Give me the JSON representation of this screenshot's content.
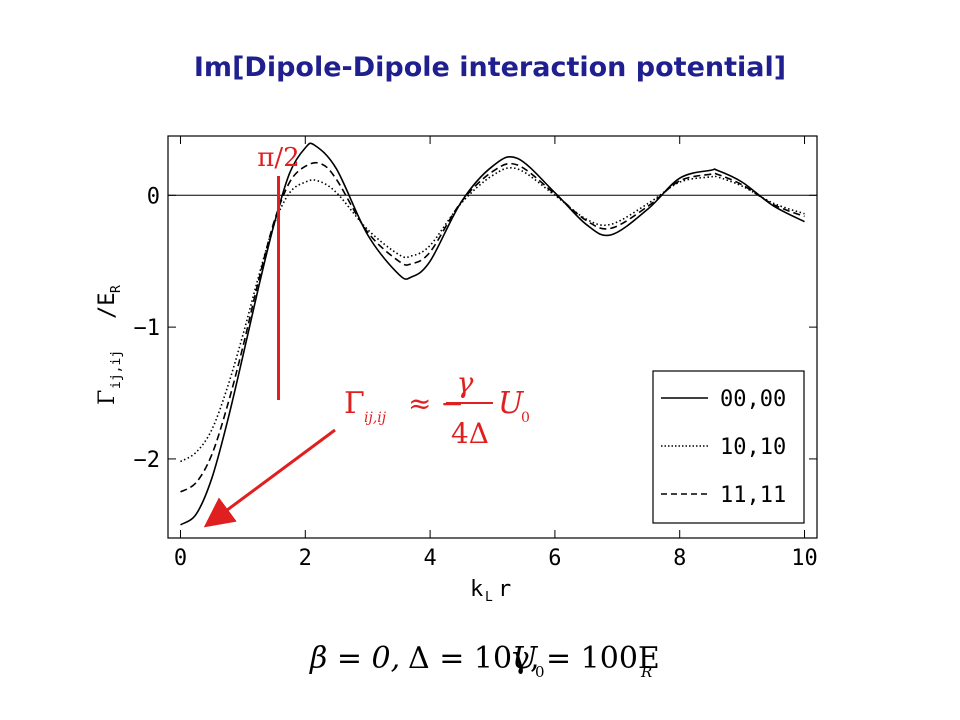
{
  "title": "Im[Dipole-Dipole interaction potential]",
  "colors": {
    "title": "#1f1f8f",
    "annotation": "#e02020",
    "curve": "#000000"
  },
  "formula_box": {
    "lhs": "Γ",
    "lhs_sub": "ij,ij",
    "approx": "≈ −",
    "numerator": "γ",
    "denominator": "4Δ",
    "factor": "U",
    "factor_sub": "0"
  },
  "parameters": {
    "beta": "β = 0,",
    "delta": "Δ = 10γ,",
    "u0": "U",
    "u0_sub": "0",
    "u0_rhs": "= 100E",
    "u0_rhs_sub": "R"
  },
  "chart_data": {
    "type": "line",
    "title": "Im[Dipole-Dipole interaction potential]",
    "xlabel": "k",
    "xlabel_sub": "L",
    "xlabel_tail": "r",
    "ylabel": "Γ",
    "ylabel_sub": "ij,ij",
    "ylabel_tail": "/E",
    "ylabel_tail_sub": "R",
    "xlim": [
      -0.2,
      10.2
    ],
    "ylim": [
      -2.6,
      0.45
    ],
    "x_ticks": [
      0,
      2,
      4,
      6,
      8,
      10
    ],
    "x_tick_labels": [
      "0",
      "2",
      "4",
      "6",
      "8",
      "10"
    ],
    "y_ticks": [
      0,
      -1,
      -2
    ],
    "y_tick_labels": [
      "0",
      "−1",
      "−2"
    ],
    "grid": false,
    "zero_line": true,
    "legend_position": "bottom-right",
    "annotation_pi2": {
      "label": "π/2",
      "x": 1.5708
    },
    "series": [
      {
        "name": "00,00",
        "style": "solid",
        "x": [
          0,
          0.25,
          0.5,
          0.75,
          1.0,
          1.25,
          1.5,
          1.75,
          2.0,
          2.15,
          2.5,
          3.0,
          3.5,
          3.7,
          4.0,
          4.5,
          5.0,
          5.4,
          6.0,
          6.5,
          6.9,
          7.5,
          8.0,
          8.5,
          8.6,
          9.0,
          9.5,
          10.0
        ],
        "y": [
          -2.5,
          -2.42,
          -2.15,
          -1.72,
          -1.22,
          -0.7,
          -0.22,
          0.17,
          0.36,
          0.38,
          0.2,
          -0.3,
          -0.6,
          -0.62,
          -0.5,
          -0.05,
          0.22,
          0.28,
          0.02,
          -0.22,
          -0.3,
          -0.1,
          0.13,
          0.19,
          0.19,
          0.1,
          -0.08,
          -0.2
        ]
      },
      {
        "name": "10,10",
        "style": "dotted",
        "x": [
          0,
          0.25,
          0.5,
          0.75,
          1.0,
          1.25,
          1.5,
          1.75,
          2.0,
          2.2,
          2.5,
          3.0,
          3.5,
          3.7,
          4.0,
          4.5,
          5.0,
          5.4,
          6.0,
          6.5,
          6.9,
          7.5,
          8.0,
          8.5,
          8.6,
          9.0,
          9.5,
          10.0
        ],
        "y": [
          -2.02,
          -1.95,
          -1.78,
          -1.46,
          -1.06,
          -0.62,
          -0.22,
          0.02,
          0.1,
          0.11,
          0.02,
          -0.26,
          -0.45,
          -0.46,
          -0.38,
          -0.06,
          0.15,
          0.2,
          0.0,
          -0.18,
          -0.22,
          -0.06,
          0.1,
          0.14,
          0.14,
          0.07,
          -0.06,
          -0.14
        ]
      },
      {
        "name": "11,11",
        "style": "dashed",
        "x": [
          0,
          0.25,
          0.5,
          0.75,
          1.0,
          1.25,
          1.5,
          1.75,
          2.0,
          2.25,
          2.5,
          3.0,
          3.5,
          3.7,
          4.0,
          4.5,
          5.0,
          5.4,
          6.0,
          6.5,
          6.9,
          7.5,
          8.0,
          8.5,
          8.6,
          9.0,
          9.5,
          10.0
        ],
        "y": [
          -2.25,
          -2.18,
          -1.97,
          -1.6,
          -1.15,
          -0.65,
          -0.2,
          0.1,
          0.22,
          0.24,
          0.12,
          -0.28,
          -0.5,
          -0.52,
          -0.43,
          -0.05,
          0.18,
          0.23,
          0.01,
          -0.19,
          -0.25,
          -0.08,
          0.11,
          0.16,
          0.16,
          0.08,
          -0.07,
          -0.16
        ]
      }
    ]
  }
}
